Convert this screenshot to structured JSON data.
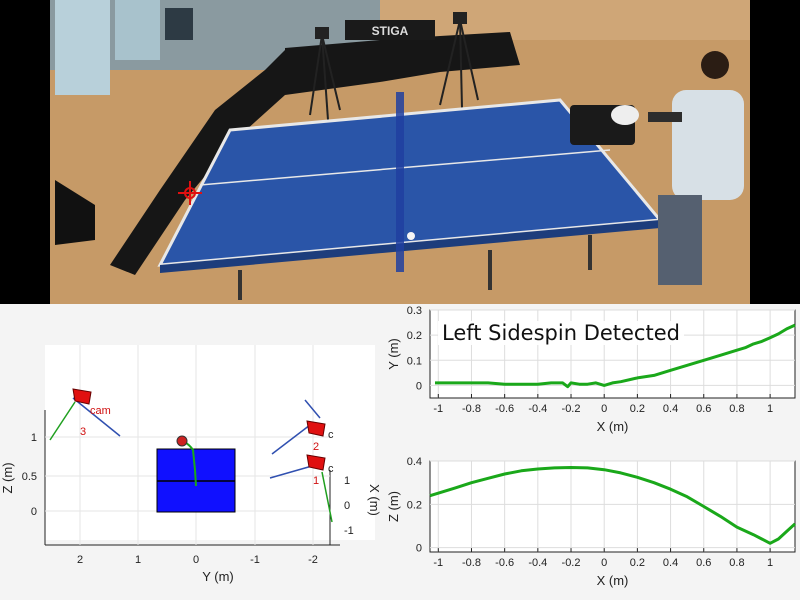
{
  "colors": {
    "curve": "#1aa81a",
    "axis": "#222222",
    "grid": "#dddddd",
    "table": "#1010ff",
    "camera": "#e01010",
    "ray": "#3050b0",
    "photo_table": "#2a55a8"
  },
  "photo": {
    "net_sign": "STIGA"
  },
  "overlay_label": "Left Sidespin Detected",
  "chart_data": [
    {
      "type": "3d-scene",
      "xlabel": "Y (m)",
      "ylabel": "Z (m)",
      "zlabel": "X (m)",
      "x_ticks": [
        "2",
        "1",
        "0",
        "-1",
        "-2"
      ],
      "y_ticks": [
        "1",
        "0.5",
        "0"
      ],
      "z_ticks": [
        "1",
        "0",
        "-1"
      ],
      "cameras": [
        {
          "label": "cam",
          "number": "3"
        },
        {
          "label": "c",
          "number": "2"
        },
        {
          "label": "c",
          "number": "1"
        }
      ]
    },
    {
      "type": "line",
      "title": "",
      "xlabel": "X (m)",
      "ylabel": "Y (m)",
      "xlim": [
        -1.05,
        1.15
      ],
      "ylim": [
        -0.05,
        0.3
      ],
      "x_ticks": [
        -1,
        -0.8,
        -0.6,
        -0.4,
        -0.2,
        0,
        0.2,
        0.4,
        0.6,
        0.8,
        1
      ],
      "x_tick_labels": [
        "-1",
        "-0.8",
        "-0.6",
        "-0.4",
        "-0.2",
        "0",
        "0.2",
        "0.4",
        "0.6",
        "0.8",
        "1"
      ],
      "y_ticks": [
        0,
        0.1,
        0.2,
        0.3
      ],
      "y_tick_labels": [
        "0",
        "0.1",
        "0.2",
        "0.3"
      ],
      "series": [
        {
          "x": [
            -1.02,
            -0.9,
            -0.8,
            -0.7,
            -0.6,
            -0.5,
            -0.4,
            -0.32,
            -0.25,
            -0.22,
            -0.2,
            -0.15,
            -0.1,
            -0.05,
            0,
            0.05,
            0.1,
            0.2,
            0.3,
            0.4,
            0.5,
            0.6,
            0.7,
            0.8,
            0.85,
            0.9,
            0.95,
            1.0,
            1.05,
            1.1,
            1.15
          ],
          "y": [
            0.01,
            0.01,
            0.01,
            0.01,
            0.005,
            0.005,
            0.005,
            0.01,
            0.01,
            -0.005,
            0.01,
            0.005,
            0.005,
            0.01,
            0.0,
            0.01,
            0.015,
            0.03,
            0.04,
            0.06,
            0.08,
            0.1,
            0.12,
            0.14,
            0.15,
            0.165,
            0.175,
            0.19,
            0.205,
            0.225,
            0.24
          ]
        }
      ]
    },
    {
      "type": "line",
      "title": "",
      "xlabel": "X (m)",
      "ylabel": "Z (m)",
      "xlim": [
        -1.05,
        1.15
      ],
      "ylim": [
        -0.02,
        0.4
      ],
      "x_ticks": [
        -1,
        -0.8,
        -0.6,
        -0.4,
        -0.2,
        0,
        0.2,
        0.4,
        0.6,
        0.8,
        1
      ],
      "x_tick_labels": [
        "-1",
        "-0.8",
        "-0.6",
        "-0.4",
        "-0.2",
        "0",
        "0.2",
        "0.4",
        "0.6",
        "0.8",
        "1"
      ],
      "y_ticks": [
        0,
        0.2,
        0.4
      ],
      "y_tick_labels": [
        "0",
        "0.2",
        "0.4"
      ],
      "series": [
        {
          "x": [
            -1.05,
            -0.9,
            -0.8,
            -0.7,
            -0.6,
            -0.5,
            -0.4,
            -0.3,
            -0.2,
            -0.1,
            0.0,
            0.1,
            0.2,
            0.3,
            0.4,
            0.5,
            0.6,
            0.7,
            0.8,
            0.9,
            0.95,
            1.0,
            1.05,
            1.1,
            1.15
          ],
          "y": [
            0.24,
            0.275,
            0.3,
            0.32,
            0.34,
            0.355,
            0.363,
            0.368,
            0.37,
            0.368,
            0.36,
            0.345,
            0.325,
            0.3,
            0.27,
            0.235,
            0.19,
            0.145,
            0.095,
            0.06,
            0.04,
            0.02,
            0.04,
            0.075,
            0.11
          ]
        }
      ]
    }
  ]
}
